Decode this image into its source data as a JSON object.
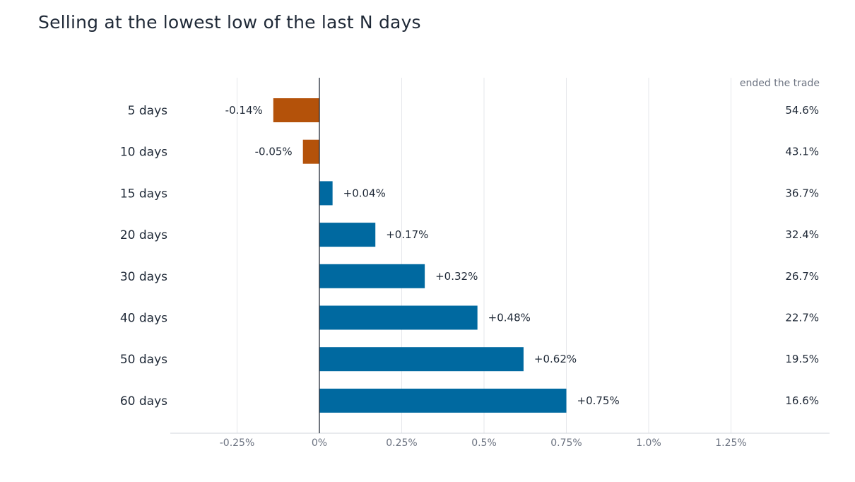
{
  "chart_data": {
    "type": "bar",
    "orientation": "horizontal",
    "title": "Selling at the lowest low of the last N days",
    "categories": [
      "5 days",
      "10 days",
      "15 days",
      "20 days",
      "30 days",
      "40 days",
      "50 days",
      "60 days"
    ],
    "values": [
      -0.14,
      -0.05,
      0.04,
      0.17,
      0.32,
      0.48,
      0.62,
      0.75
    ],
    "value_labels": [
      "-0.14%",
      "-0.05%",
      "+0.04%",
      "+0.17%",
      "+0.32%",
      "+0.48%",
      "+0.62%",
      "+0.75%"
    ],
    "side_column": {
      "header": "ended the trade",
      "values": [
        "54.6%",
        "43.1%",
        "36.7%",
        "32.4%",
        "26.7%",
        "22.7%",
        "19.5%",
        "16.6%"
      ]
    },
    "xlim": [
      -0.45,
      1.55
    ],
    "xticks": [
      -0.25,
      0,
      0.25,
      0.5,
      0.75,
      1.0,
      1.25
    ],
    "xtick_labels": [
      "-0.25%",
      "0%",
      "0.25%",
      "0.5%",
      "0.75%",
      "1.0%",
      "1.25%"
    ],
    "grid": true,
    "colors": {
      "positive": "#0069a0",
      "negative": "#b4520a",
      "grid": "#e5e7eb",
      "zero_line": "#1f2937"
    }
  }
}
